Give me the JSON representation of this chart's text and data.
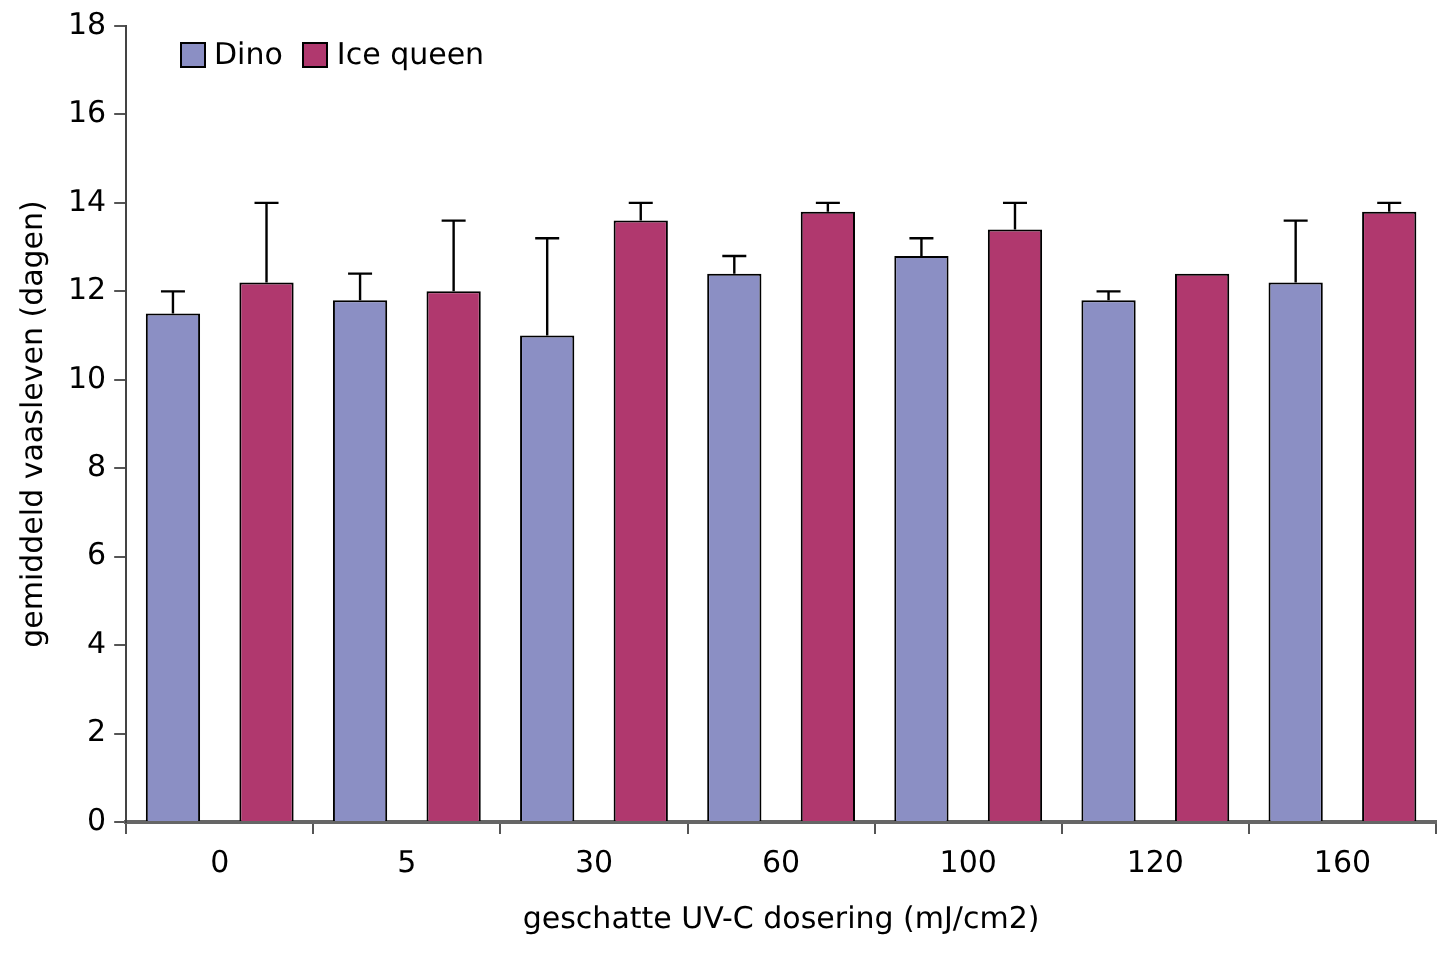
{
  "chart_data": {
    "type": "bar",
    "xlabel": "geschatte UV-C dosering (mJ/cm2)",
    "ylabel": "gemiddeld vaasleven (dagen)",
    "categories": [
      "0",
      "5",
      "30",
      "60",
      "100",
      "120",
      "160"
    ],
    "series": [
      {
        "name": "Dino",
        "color": "#8b8fc4",
        "values": [
          11.5,
          11.8,
          11.0,
          12.4,
          12.8,
          11.8,
          12.2
        ],
        "errors": [
          [
            11.5,
            12.0
          ],
          [
            11.8,
            12.4
          ],
          [
            11.0,
            13.2
          ],
          [
            12.4,
            12.8
          ],
          [
            12.8,
            13.2
          ],
          [
            11.8,
            12.0
          ],
          [
            12.2,
            13.6
          ]
        ]
      },
      {
        "name": "Ice queen",
        "color": "#b0386e",
        "values": [
          12.2,
          12.0,
          13.6,
          13.8,
          13.4,
          12.4,
          13.8
        ],
        "errors": [
          [
            12.2,
            14.0
          ],
          [
            12.0,
            13.6
          ],
          [
            13.6,
            14.0
          ],
          [
            13.8,
            14.0
          ],
          [
            13.4,
            14.0
          ],
          null,
          [
            13.8,
            14.0
          ]
        ]
      }
    ],
    "ylim": [
      0,
      18
    ],
    "yticks": [
      0,
      2,
      4,
      6,
      8,
      10,
      12,
      14,
      16,
      18
    ],
    "grid": false,
    "legend": "top left"
  }
}
